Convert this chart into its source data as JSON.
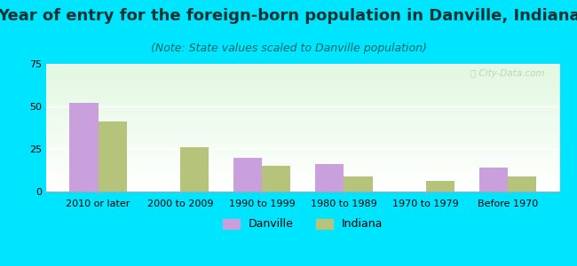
{
  "title": "Year of entry for the foreign-born population in Danville, Indiana",
  "subtitle": "(Note: State values scaled to Danville population)",
  "categories": [
    "2010 or later",
    "2000 to 2009",
    "1990 to 1999",
    "1980 to 1989",
    "1970 to 1979",
    "Before 1970"
  ],
  "danville_values": [
    52,
    0,
    20,
    16,
    0,
    14
  ],
  "indiana_values": [
    41,
    26,
    15,
    9,
    6,
    9
  ],
  "danville_color": "#c9a0dc",
  "indiana_color": "#b5c47a",
  "background_outer": "#00e5ff",
  "ylim": [
    0,
    75
  ],
  "yticks": [
    0,
    25,
    50,
    75
  ],
  "bar_width": 0.35,
  "title_fontsize": 13,
  "subtitle_fontsize": 9,
  "tick_fontsize": 8,
  "legend_fontsize": 9,
  "title_color": "#003333",
  "subtitle_color": "#006666"
}
